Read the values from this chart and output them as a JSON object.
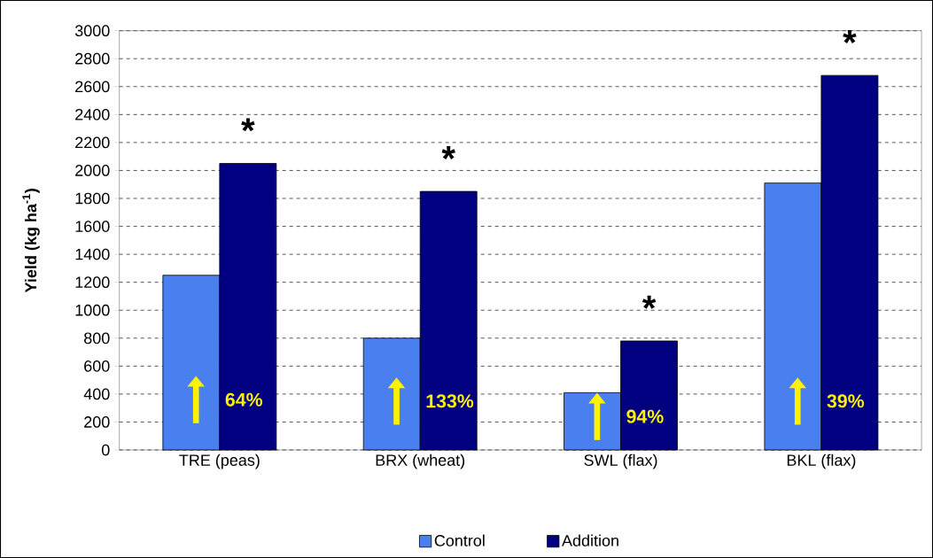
{
  "chart_data": {
    "type": "bar",
    "ylabel": "Yield (kg ha$^{-1}$)",
    "categories": [
      "TRE (peas)",
      "BRX (wheat)",
      "SWL (flax)",
      "BKL (flax)"
    ],
    "series": [
      {
        "name": "Control",
        "color": "#4a7ff0",
        "values": [
          1250,
          800,
          410,
          1910
        ]
      },
      {
        "name": "Addition",
        "color": "#000080",
        "values": [
          2050,
          1850,
          780,
          2680
        ]
      }
    ],
    "ylim": [
      0,
      3000
    ],
    "yticks": [
      0,
      200,
      400,
      600,
      800,
      1000,
      1200,
      1400,
      1600,
      1800,
      2000,
      2200,
      2400,
      2600,
      2800,
      3000
    ],
    "grid": "y",
    "legend": "bottom",
    "annotations": [
      "*",
      "*",
      "*",
      "*",
      {
        "text": "64%",
        "x": "TRE (peas)",
        "y": 360
      },
      {
        "text": "133%",
        "x": "BRX (wheat)",
        "y": 350
      },
      {
        "text": "94%",
        "x": "SWL (flax)",
        "y": 240
      },
      {
        "text": "39%",
        "x": "BKL (flax)",
        "y": 350
      }
    ]
  }
}
